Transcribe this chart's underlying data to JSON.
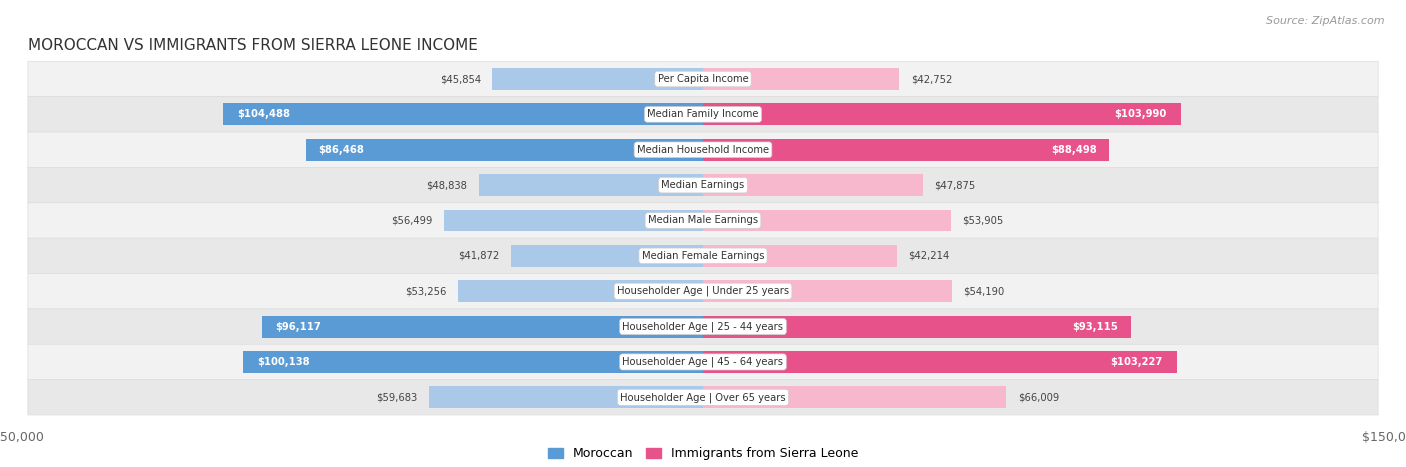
{
  "title": "MOROCCAN VS IMMIGRANTS FROM SIERRA LEONE INCOME",
  "source": "Source: ZipAtlas.com",
  "categories": [
    "Per Capita Income",
    "Median Family Income",
    "Median Household Income",
    "Median Earnings",
    "Median Male Earnings",
    "Median Female Earnings",
    "Householder Age | Under 25 years",
    "Householder Age | 25 - 44 years",
    "Householder Age | 45 - 64 years",
    "Householder Age | Over 65 years"
  ],
  "moroccan_values": [
    45854,
    104488,
    86468,
    48838,
    56499,
    41872,
    53256,
    96117,
    100138,
    59683
  ],
  "sierra_leone_values": [
    42752,
    103990,
    88498,
    47875,
    53905,
    42214,
    54190,
    93115,
    103227,
    66009
  ],
  "moroccan_labels": [
    "$45,854",
    "$104,488",
    "$86,468",
    "$48,838",
    "$56,499",
    "$41,872",
    "$53,256",
    "$96,117",
    "$100,138",
    "$59,683"
  ],
  "sierra_leone_labels": [
    "$42,752",
    "$103,990",
    "$88,498",
    "$47,875",
    "$53,905",
    "$42,214",
    "$54,190",
    "$93,115",
    "$103,227",
    "$66,009"
  ],
  "moroccan_color_light": "#aac9e8",
  "moroccan_color_dark": "#5b9bd5",
  "sierra_leone_color_light": "#f7b8ce",
  "sierra_leone_color_dark": "#e8528a",
  "moroccan_large_threshold": 70000,
  "sierra_large_threshold": 70000,
  "max_value": 150000,
  "background_color": "#ffffff",
  "row_colors": [
    "#f2f2f2",
    "#e8e8e8"
  ],
  "legend_moroccan": "Moroccan",
  "legend_sierra_leone": "Immigrants from Sierra Leone"
}
